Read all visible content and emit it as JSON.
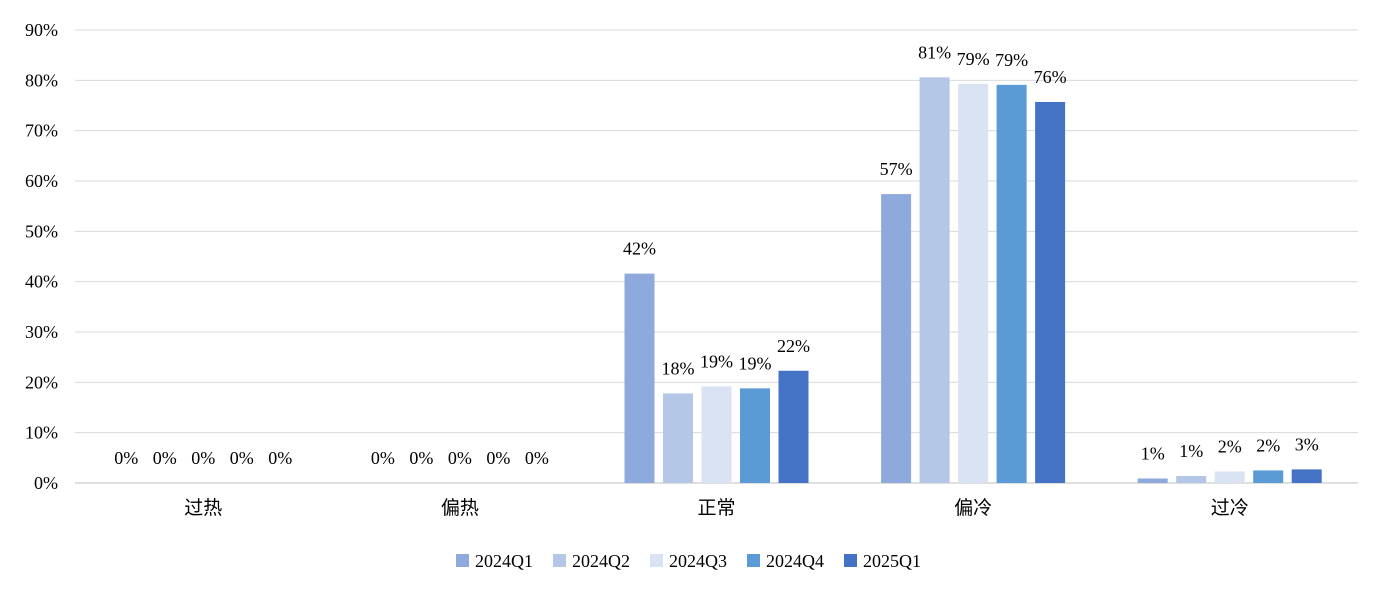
{
  "chart_data": {
    "type": "bar",
    "categories": [
      "过热",
      "偏热",
      "正常",
      "偏冷",
      "过冷"
    ],
    "series": [
      {
        "name": "2024Q1",
        "color": "#8EA9DB",
        "values": [
          0,
          0,
          41.6,
          57.4,
          0.9
        ],
        "labels": [
          "0%",
          "0%",
          "42%",
          "57%",
          "1%"
        ]
      },
      {
        "name": "2024Q2",
        "color": "#B4C7E7",
        "values": [
          0,
          0,
          17.8,
          80.6,
          1.4
        ],
        "labels": [
          "0%",
          "0%",
          "18%",
          "81%",
          "1%"
        ]
      },
      {
        "name": "2024Q3",
        "color": "#DAE3F3",
        "values": [
          0,
          0,
          19.2,
          79.3,
          2.3
        ],
        "labels": [
          "0%",
          "0%",
          "19%",
          "79%",
          "2%"
        ]
      },
      {
        "name": "2024Q4",
        "color": "#5B9BD5",
        "values": [
          0,
          0,
          18.8,
          79.1,
          2.5
        ],
        "labels": [
          "0%",
          "0%",
          "19%",
          "79%",
          "2%"
        ]
      },
      {
        "name": "2025Q1",
        "color": "#4472C4",
        "values": [
          0,
          0,
          22.3,
          75.7,
          2.7
        ],
        "labels": [
          "0%",
          "0%",
          "22%",
          "76%",
          "3%"
        ]
      }
    ],
    "yticks": [
      "0%",
      "10%",
      "20%",
      "30%",
      "40%",
      "50%",
      "60%",
      "70%",
      "80%",
      "90%"
    ],
    "ylim": [
      0,
      90
    ],
    "grid": true,
    "legend_position": "bottom"
  }
}
